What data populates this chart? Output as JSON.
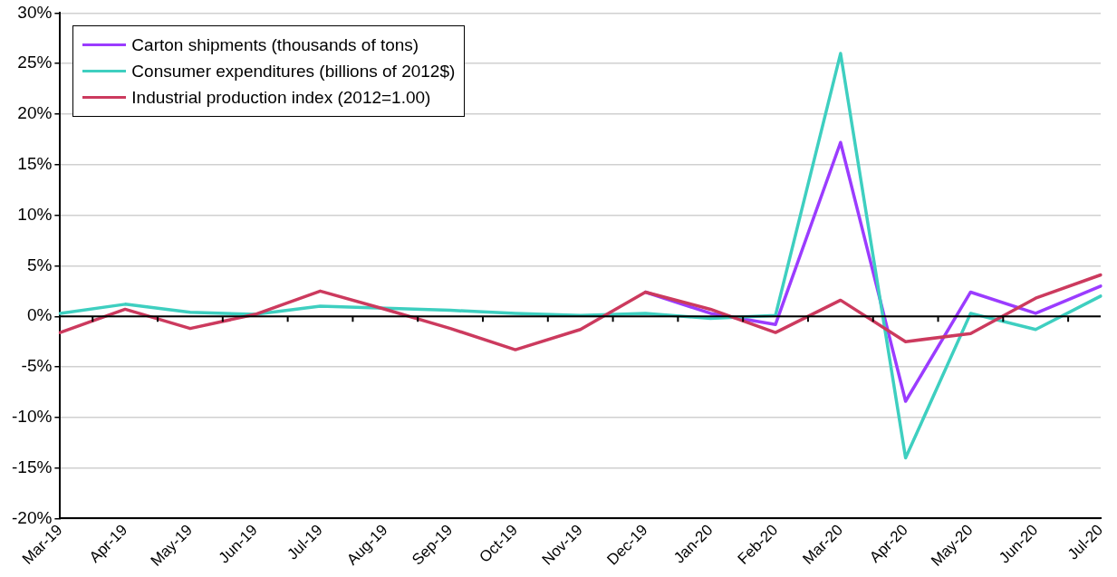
{
  "chart_data": {
    "type": "line",
    "categories": [
      "Mar-19",
      "Apr-19",
      "May-19",
      "Jun-19",
      "Jul-19",
      "Aug-19",
      "Sep-19",
      "Oct-19",
      "Nov-19",
      "Dec-19",
      "Jan-20",
      "Feb-20",
      "Mar-20",
      "Apr-20",
      "May-20",
      "Jun-20",
      "Jul-20"
    ],
    "series": [
      {
        "name": "Carton shipments (thousands of tons)",
        "color": "#9b3cff",
        "values": [
          null,
          null,
          null,
          null,
          null,
          null,
          null,
          null,
          null,
          2.4,
          0.3,
          -0.8,
          17.2,
          -8.4,
          2.4,
          0.3,
          3.0
        ]
      },
      {
        "name": "Consumer expenditures (billions of 2012$)",
        "color": "#3ecfc0",
        "values": [
          0.3,
          1.2,
          0.4,
          0.2,
          1.0,
          0.8,
          0.6,
          0.3,
          0.1,
          0.3,
          -0.2,
          0.1,
          26.0,
          -14.0,
          0.3,
          -1.3,
          2.0
        ]
      },
      {
        "name": "Industrial production index (2012=1.00)",
        "color": "#cc3a5e",
        "values": [
          -1.6,
          0.7,
          -1.2,
          0.2,
          2.5,
          0.7,
          -1.2,
          -3.3,
          -1.3,
          2.4,
          0.7,
          -1.6,
          1.6,
          -2.5,
          -1.7,
          1.8,
          4.1
        ]
      }
    ],
    "ylim": [
      -20,
      30
    ],
    "yticks": [
      {
        "value": -20,
        "label": "-20%"
      },
      {
        "value": -15,
        "label": "-15%"
      },
      {
        "value": -10,
        "label": "-10%"
      },
      {
        "value": -5,
        "label": "-5%"
      },
      {
        "value": 0,
        "label": "0%"
      },
      {
        "value": 5,
        "label": "5%"
      },
      {
        "value": 10,
        "label": "10%"
      },
      {
        "value": 15,
        "label": "15%"
      },
      {
        "value": 20,
        "label": "20%"
      },
      {
        "value": 25,
        "label": "25%"
      },
      {
        "value": 30,
        "label": "30%"
      }
    ],
    "grid": "y",
    "legend": "top left",
    "marker": "none",
    "line_style": "solid"
  }
}
